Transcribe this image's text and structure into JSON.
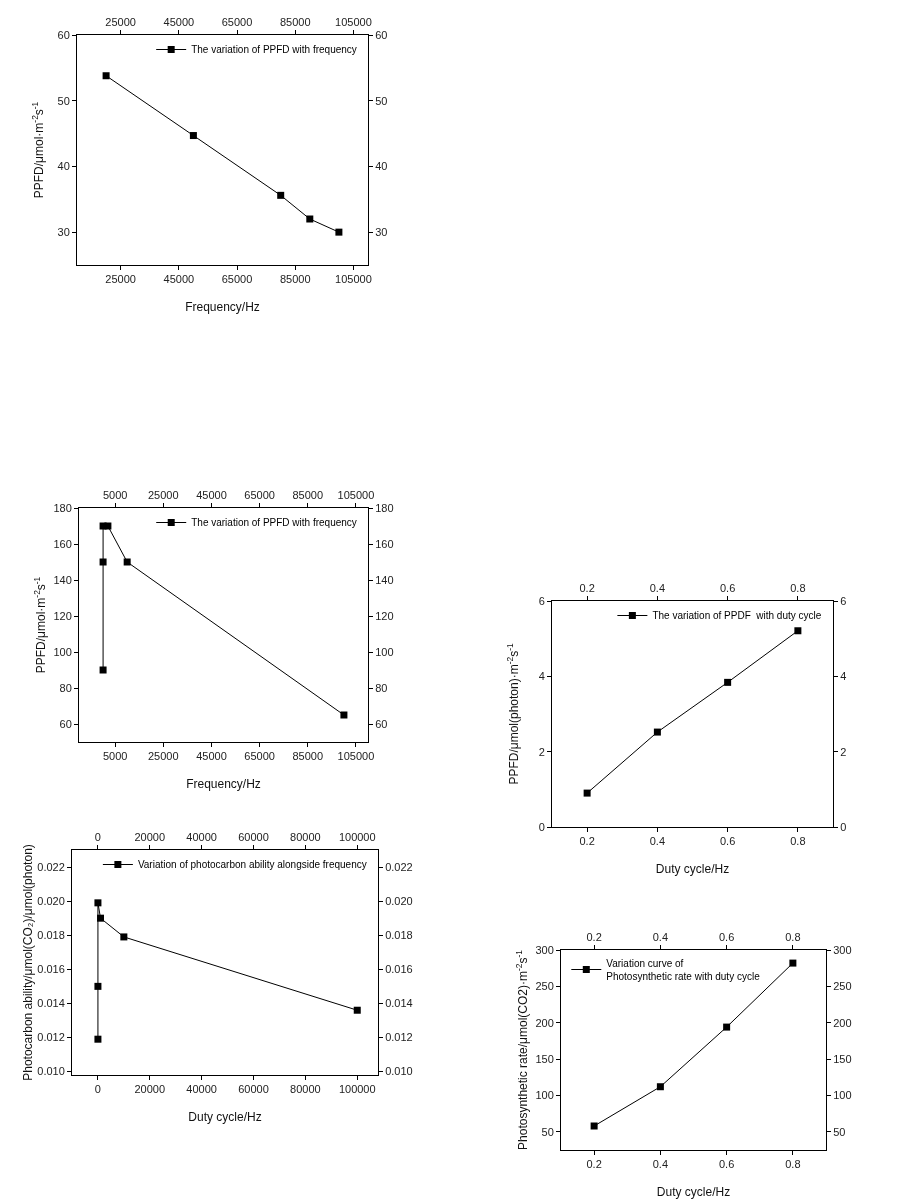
{
  "chart_data": [
    {
      "type": "line",
      "xlabel": "Frequency/Hz",
      "ylabel": "PPFD/μmol·m$^{-2}$s$^{-1}$",
      "x": [
        20000,
        50000,
        80000,
        90000,
        100000
      ],
      "series": [
        {
          "name": "The variation of PPFD with frequency",
          "color": "#000000",
          "values": [
            53.8,
            44.7,
            35.6,
            32.0,
            30.0
          ]
        }
      ],
      "xlim": [
        10000,
        110000
      ],
      "xticks": [
        25000,
        45000,
        65000,
        85000,
        105000
      ],
      "x2lim": [
        10000,
        110000
      ],
      "x2ticks": [
        25000,
        45000,
        65000,
        85000,
        105000
      ],
      "ylim": [
        25,
        60
      ],
      "yticks": [
        30,
        40,
        50,
        60
      ],
      "y2lim": [
        25,
        60
      ],
      "y2ticks": [
        30,
        40,
        50,
        60
      ],
      "legend": "top right",
      "marker": "square",
      "line_style": "solid"
    },
    {
      "type": "line",
      "xlabel": "Frequency/Hz",
      "ylabel": "PPFD/μmol·m$^{-2}$s$^{-1}$",
      "x": [
        0,
        0,
        0,
        2000,
        10000,
        100000
      ],
      "series": [
        {
          "name": "The variation of PPFD with frequency",
          "color": "#000000",
          "values": [
            90,
            150,
            170,
            170,
            150,
            65
          ]
        }
      ],
      "xlim": [
        -10000,
        110000
      ],
      "xticks": [
        5000,
        25000,
        45000,
        65000,
        85000,
        105000
      ],
      "x2lim": [
        -10000,
        110000
      ],
      "x2ticks": [
        5000,
        25000,
        45000,
        65000,
        85000,
        105000
      ],
      "ylim": [
        50,
        180
      ],
      "yticks": [
        60,
        80,
        100,
        120,
        140,
        160,
        180
      ],
      "y2lim": [
        50,
        180
      ],
      "y2ticks": [
        60,
        80,
        100,
        120,
        140,
        160,
        180
      ],
      "legend": "top right",
      "marker": "square",
      "line_style": "solid"
    },
    {
      "type": "line",
      "xlabel": "Duty cycle/Hz",
      "ylabel": "Photocarbon ability/μmol(CO₂)/μmol(photon)",
      "x": [
        0,
        0,
        0,
        1000,
        10000,
        100000
      ],
      "series": [
        {
          "name": "Variation of photocarbon ability alongside frequency",
          "color": "#000000",
          "values": [
            0.0119,
            0.015,
            0.0199,
            0.019,
            0.0179,
            0.0136
          ]
        }
      ],
      "xlim": [
        -10000,
        108000
      ],
      "xticks": [
        0,
        20000,
        40000,
        60000,
        80000,
        100000
      ],
      "x2lim": [
        -10000,
        108000
      ],
      "x2ticks": [
        0,
        20000,
        40000,
        60000,
        80000,
        100000
      ],
      "ylim": [
        0.0098,
        0.023
      ],
      "yticks": [
        {
          "value": 0.01,
          "label": "0.010"
        },
        0.012,
        0.014,
        0.016,
        0.018,
        {
          "value": 0.02,
          "label": "0.020"
        },
        0.022
      ],
      "y2lim": [
        0.0098,
        0.023
      ],
      "y2ticks": [
        {
          "value": 0.01,
          "label": "0.010"
        },
        0.012,
        0.014,
        0.016,
        0.018,
        {
          "value": 0.02,
          "label": "0.020"
        },
        0.022
      ],
      "legend": "top right",
      "marker": "square",
      "line_style": "solid"
    },
    {
      "type": "line",
      "xlabel": "Duty cycle/Hz",
      "ylabel": "PPFD/μmol(photon)·m$^{-2}$s$^{-1}$",
      "x": [
        0.2,
        0.4,
        0.6,
        0.8
      ],
      "series": [
        {
          "name": "The variation of PPDF  with duty cycle",
          "color": "#000000",
          "values": [
            0.9,
            2.52,
            3.84,
            5.21
          ]
        }
      ],
      "xlim": [
        0.1,
        0.9
      ],
      "xticks": [
        0.2,
        0.4,
        0.6,
        0.8
      ],
      "x2lim": [
        0.1,
        0.9
      ],
      "x2ticks": [
        0.2,
        0.4,
        0.6,
        0.8
      ],
      "ylim": [
        0,
        6
      ],
      "yticks": [
        0,
        2,
        4,
        6
      ],
      "y2lim": [
        0,
        6
      ],
      "y2ticks": [
        0,
        2,
        4,
        6
      ],
      "legend": "top right",
      "marker": "square",
      "line_style": "solid"
    },
    {
      "type": "line",
      "xlabel": "Duty cycle/Hz",
      "ylabel": "Photosynthetic rate/μmol(CO2)·m$^{-2}$s$^{-1}$",
      "x": [
        0.2,
        0.4,
        0.6,
        0.8
      ],
      "series": [
        {
          "name": "Variation curve of\nPhotosynthetic rate with duty cycle",
          "color": "#000000",
          "values": [
            58,
            112,
            194,
            282
          ]
        }
      ],
      "xlim": [
        0.1,
        0.9
      ],
      "xticks": [
        0.2,
        0.4,
        0.6,
        0.8
      ],
      "x2lim": [
        0.1,
        0.9
      ],
      "x2ticks": [
        0.2,
        0.4,
        0.6,
        0.8
      ],
      "ylim": [
        25,
        300
      ],
      "yticks": [
        50,
        100,
        150,
        200,
        250,
        300
      ],
      "y2lim": [
        25,
        300
      ],
      "y2ticks": [
        50,
        100,
        150,
        200,
        250,
        300
      ],
      "legend": "top left",
      "marker": "square",
      "line_style": "solid"
    }
  ]
}
